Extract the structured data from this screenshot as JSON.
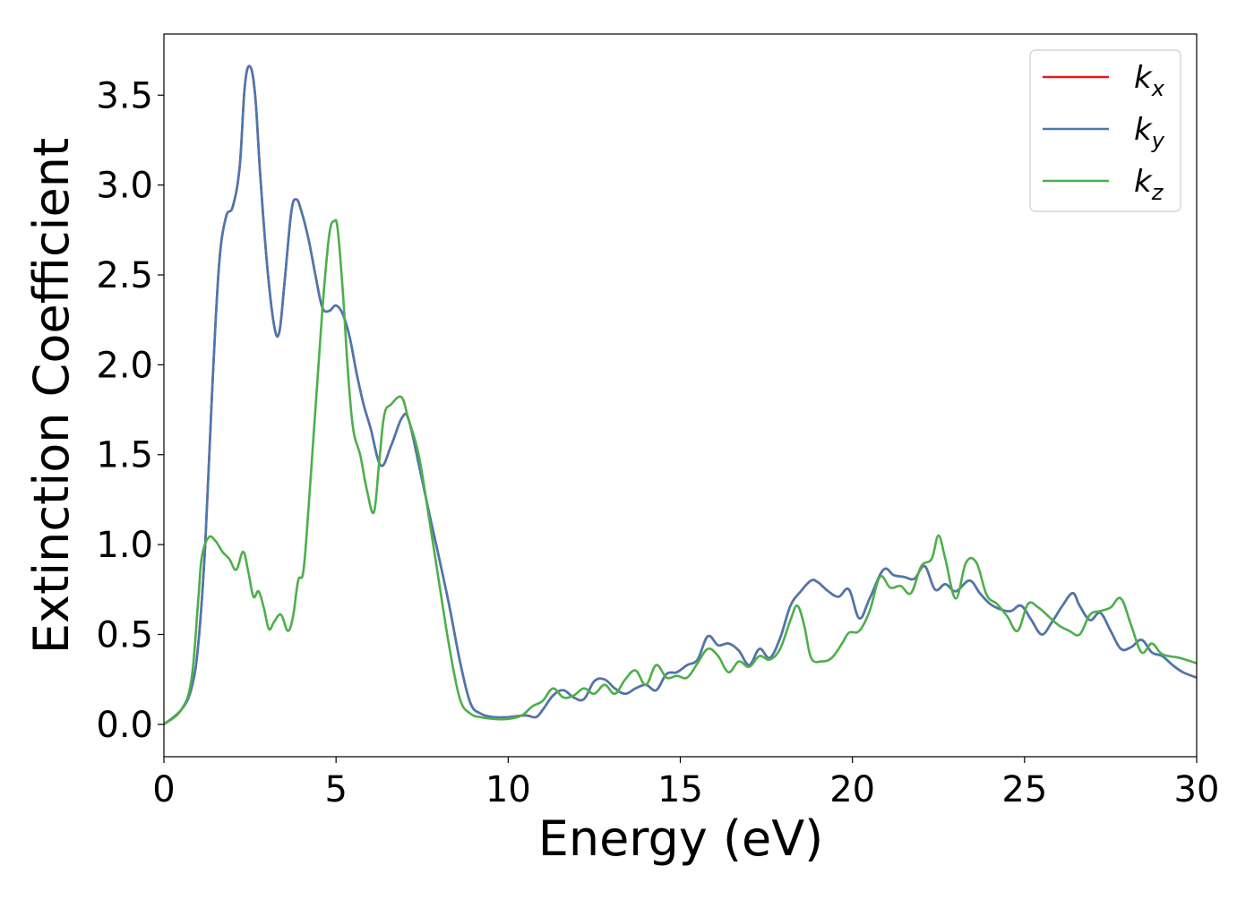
{
  "chart_data": {
    "type": "line",
    "title": "",
    "xlabel": "Energy (eV)",
    "ylabel": "Extinction Coefficient",
    "xlim": [
      0,
      30
    ],
    "ylim": [
      -0.18,
      3.84
    ],
    "xticks": [
      0,
      5,
      10,
      15,
      20,
      25,
      30
    ],
    "xtick_labels": [
      "0",
      "5",
      "10",
      "15",
      "20",
      "25",
      "30"
    ],
    "yticks": [
      0.0,
      0.5,
      1.0,
      1.5,
      2.0,
      2.5,
      3.0,
      3.5
    ],
    "ytick_labels": [
      "0.0",
      "0.5",
      "1.0",
      "1.5",
      "2.0",
      "2.5",
      "3.0",
      "3.5"
    ],
    "grid": false,
    "legend_position": "top-right",
    "series": [
      {
        "name": "k_x",
        "label_main": "k",
        "label_sub": "x",
        "color": "#e41a1c",
        "x": [
          0,
          0.5,
          0.8,
          1.0,
          1.2,
          1.4,
          1.6,
          1.8,
          2.0,
          2.2,
          2.35,
          2.5,
          2.65,
          2.8,
          3.0,
          3.2,
          3.35,
          3.5,
          3.7,
          3.85,
          4.0,
          4.2,
          4.4,
          4.6,
          4.8,
          5.0,
          5.2,
          5.4,
          5.6,
          5.8,
          6.0,
          6.3,
          6.6,
          6.9,
          7.1,
          7.4,
          7.7,
          8.0,
          8.3,
          8.6,
          8.9,
          9.2,
          9.6,
          10.0,
          10.5,
          10.8,
          11.0,
          11.3,
          11.6,
          11.9,
          12.2,
          12.5,
          12.8,
          13.1,
          13.4,
          13.7,
          14.0,
          14.3,
          14.6,
          14.9,
          15.2,
          15.5,
          15.8,
          16.1,
          16.4,
          16.7,
          17.0,
          17.3,
          17.6,
          17.9,
          18.2,
          18.5,
          18.8,
          19.0,
          19.3,
          19.6,
          19.9,
          20.2,
          20.5,
          20.9,
          21.2,
          21.5,
          21.8,
          22.1,
          22.4,
          22.7,
          23.0,
          23.4,
          23.7,
          24.0,
          24.3,
          24.6,
          24.9,
          25.2,
          25.5,
          25.8,
          26.1,
          26.4,
          26.6,
          26.9,
          27.2,
          27.5,
          27.8,
          28.1,
          28.4,
          28.7,
          29.0,
          29.3,
          29.6,
          30.0
        ],
        "y": [
          0.0,
          0.08,
          0.2,
          0.45,
          1.0,
          1.85,
          2.55,
          2.82,
          2.88,
          3.1,
          3.55,
          3.66,
          3.5,
          3.05,
          2.55,
          2.22,
          2.18,
          2.45,
          2.85,
          2.92,
          2.85,
          2.7,
          2.5,
          2.32,
          2.3,
          2.33,
          2.28,
          2.15,
          1.95,
          1.78,
          1.65,
          1.44,
          1.55,
          1.7,
          1.7,
          1.45,
          1.18,
          0.92,
          0.65,
          0.35,
          0.12,
          0.06,
          0.04,
          0.04,
          0.05,
          0.04,
          0.08,
          0.16,
          0.19,
          0.15,
          0.14,
          0.24,
          0.25,
          0.2,
          0.17,
          0.2,
          0.22,
          0.19,
          0.28,
          0.29,
          0.33,
          0.36,
          0.49,
          0.44,
          0.45,
          0.41,
          0.33,
          0.42,
          0.37,
          0.48,
          0.66,
          0.74,
          0.8,
          0.79,
          0.74,
          0.71,
          0.75,
          0.59,
          0.7,
          0.86,
          0.83,
          0.82,
          0.81,
          0.88,
          0.75,
          0.78,
          0.74,
          0.8,
          0.73,
          0.67,
          0.64,
          0.63,
          0.66,
          0.58,
          0.5,
          0.57,
          0.66,
          0.73,
          0.66,
          0.58,
          0.62,
          0.52,
          0.42,
          0.43,
          0.47,
          0.4,
          0.38,
          0.33,
          0.29,
          0.26
        ]
      },
      {
        "name": "k_y",
        "label_main": "k",
        "label_sub": "y",
        "color": "#4a78b0",
        "x": [
          0,
          0.5,
          0.8,
          1.0,
          1.2,
          1.4,
          1.6,
          1.8,
          2.0,
          2.2,
          2.35,
          2.5,
          2.65,
          2.8,
          3.0,
          3.2,
          3.35,
          3.5,
          3.7,
          3.85,
          4.0,
          4.2,
          4.4,
          4.6,
          4.8,
          5.0,
          5.2,
          5.4,
          5.6,
          5.8,
          6.0,
          6.3,
          6.6,
          6.9,
          7.1,
          7.4,
          7.7,
          8.0,
          8.3,
          8.6,
          8.9,
          9.2,
          9.6,
          10.0,
          10.5,
          10.8,
          11.0,
          11.3,
          11.6,
          11.9,
          12.2,
          12.5,
          12.8,
          13.1,
          13.4,
          13.7,
          14.0,
          14.3,
          14.6,
          14.9,
          15.2,
          15.5,
          15.8,
          16.1,
          16.4,
          16.7,
          17.0,
          17.3,
          17.6,
          17.9,
          18.2,
          18.5,
          18.8,
          19.0,
          19.3,
          19.6,
          19.9,
          20.2,
          20.5,
          20.9,
          21.2,
          21.5,
          21.8,
          22.1,
          22.4,
          22.7,
          23.0,
          23.4,
          23.7,
          24.0,
          24.3,
          24.6,
          24.9,
          25.2,
          25.5,
          25.8,
          26.1,
          26.4,
          26.6,
          26.9,
          27.2,
          27.5,
          27.8,
          28.1,
          28.4,
          28.7,
          29.0,
          29.3,
          29.6,
          30.0
        ],
        "y": [
          0.0,
          0.08,
          0.2,
          0.45,
          1.0,
          1.85,
          2.55,
          2.82,
          2.88,
          3.1,
          3.55,
          3.66,
          3.5,
          3.05,
          2.55,
          2.22,
          2.18,
          2.45,
          2.85,
          2.92,
          2.85,
          2.7,
          2.5,
          2.32,
          2.3,
          2.33,
          2.28,
          2.15,
          1.95,
          1.78,
          1.65,
          1.44,
          1.55,
          1.7,
          1.7,
          1.45,
          1.18,
          0.92,
          0.65,
          0.35,
          0.12,
          0.06,
          0.04,
          0.04,
          0.05,
          0.04,
          0.08,
          0.16,
          0.19,
          0.15,
          0.14,
          0.24,
          0.25,
          0.2,
          0.17,
          0.2,
          0.22,
          0.19,
          0.28,
          0.29,
          0.33,
          0.36,
          0.49,
          0.44,
          0.45,
          0.41,
          0.33,
          0.42,
          0.37,
          0.48,
          0.66,
          0.74,
          0.8,
          0.79,
          0.74,
          0.71,
          0.75,
          0.59,
          0.7,
          0.86,
          0.83,
          0.82,
          0.81,
          0.88,
          0.75,
          0.78,
          0.74,
          0.8,
          0.73,
          0.67,
          0.64,
          0.63,
          0.66,
          0.58,
          0.5,
          0.57,
          0.66,
          0.73,
          0.66,
          0.58,
          0.62,
          0.52,
          0.42,
          0.43,
          0.47,
          0.4,
          0.38,
          0.33,
          0.29,
          0.26
        ]
      },
      {
        "name": "k_z",
        "label_main": "k",
        "label_sub": "z",
        "color": "#4daf4a",
        "x": [
          0,
          0.5,
          0.8,
          1.0,
          1.1,
          1.3,
          1.5,
          1.7,
          1.9,
          2.1,
          2.3,
          2.45,
          2.6,
          2.75,
          2.9,
          3.05,
          3.2,
          3.4,
          3.6,
          3.75,
          3.9,
          4.05,
          4.2,
          4.4,
          4.6,
          4.8,
          4.95,
          5.05,
          5.2,
          5.35,
          5.5,
          5.7,
          5.9,
          6.1,
          6.25,
          6.4,
          6.6,
          6.9,
          7.1,
          7.4,
          7.7,
          8.0,
          8.3,
          8.6,
          8.9,
          9.2,
          9.6,
          10.0,
          10.4,
          10.7,
          11.0,
          11.3,
          11.6,
          11.9,
          12.2,
          12.5,
          12.8,
          13.1,
          13.4,
          13.7,
          14.0,
          14.3,
          14.6,
          14.9,
          15.2,
          15.5,
          15.8,
          16.1,
          16.4,
          16.7,
          17.0,
          17.3,
          17.6,
          17.9,
          18.2,
          18.4,
          18.6,
          18.8,
          19.1,
          19.4,
          19.7,
          19.9,
          20.2,
          20.5,
          20.8,
          21.1,
          21.4,
          21.7,
          22.0,
          22.3,
          22.5,
          22.7,
          23.0,
          23.3,
          23.6,
          23.9,
          24.2,
          24.5,
          24.8,
          25.1,
          25.4,
          25.7,
          26.0,
          26.3,
          26.6,
          26.9,
          27.2,
          27.5,
          27.8,
          28.1,
          28.4,
          28.7,
          29.0,
          29.5,
          30.0
        ],
        "y": [
          0.0,
          0.08,
          0.25,
          0.7,
          0.93,
          1.04,
          1.02,
          0.96,
          0.92,
          0.86,
          0.96,
          0.85,
          0.71,
          0.74,
          0.65,
          0.53,
          0.57,
          0.61,
          0.52,
          0.6,
          0.8,
          0.85,
          1.2,
          1.75,
          2.3,
          2.72,
          2.8,
          2.75,
          2.4,
          1.95,
          1.64,
          1.5,
          1.3,
          1.18,
          1.45,
          1.72,
          1.78,
          1.82,
          1.7,
          1.5,
          1.15,
          0.78,
          0.42,
          0.14,
          0.06,
          0.04,
          0.03,
          0.03,
          0.05,
          0.1,
          0.13,
          0.2,
          0.15,
          0.16,
          0.2,
          0.17,
          0.22,
          0.17,
          0.25,
          0.3,
          0.22,
          0.33,
          0.26,
          0.27,
          0.26,
          0.34,
          0.42,
          0.38,
          0.29,
          0.35,
          0.32,
          0.38,
          0.36,
          0.42,
          0.58,
          0.66,
          0.55,
          0.37,
          0.35,
          0.37,
          0.45,
          0.51,
          0.52,
          0.63,
          0.82,
          0.76,
          0.77,
          0.73,
          0.88,
          0.92,
          1.05,
          0.92,
          0.7,
          0.9,
          0.9,
          0.72,
          0.67,
          0.6,
          0.52,
          0.67,
          0.65,
          0.6,
          0.55,
          0.52,
          0.5,
          0.61,
          0.63,
          0.65,
          0.7,
          0.55,
          0.4,
          0.45,
          0.39,
          0.37,
          0.34
        ]
      }
    ]
  }
}
